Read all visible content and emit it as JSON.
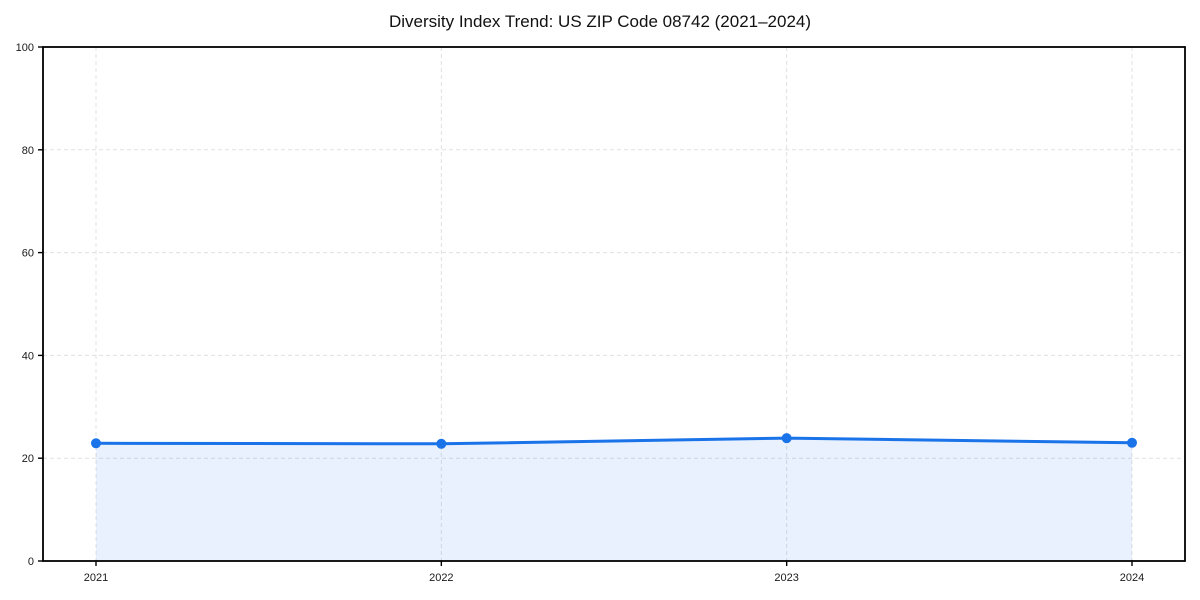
{
  "chart_data": {
    "type": "area",
    "title": "Diversity Index Trend: US ZIP Code 08742 (2021–2024)",
    "categories": [
      "2021",
      "2022",
      "2023",
      "2024"
    ],
    "series": [
      {
        "name": "Diversity Index",
        "values": [
          22.9,
          22.8,
          23.9,
          23.0
        ]
      }
    ],
    "xlabel": "",
    "ylabel": "",
    "ylim": [
      0,
      100
    ],
    "yticks": [
      0,
      20,
      40,
      60,
      80,
      100
    ],
    "grid": true,
    "grid_style": "dashed",
    "legend_position": "none",
    "colors": {
      "line": "#1a73e8",
      "marker": "#1a73e8",
      "fill": "#1a73e8",
      "fill_opacity": 0.1,
      "grid": "#e0e0e0",
      "axis": "#000000",
      "text": "#1a1a1a",
      "background": "#ffffff"
    }
  }
}
